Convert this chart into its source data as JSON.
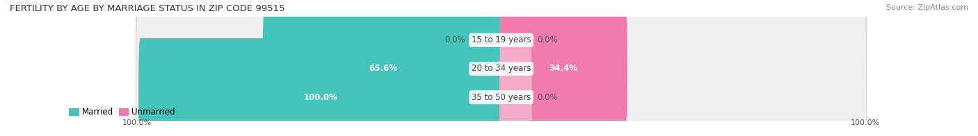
{
  "title": "FERTILITY BY AGE BY MARRIAGE STATUS IN ZIP CODE 99515",
  "source": "Source: ZipAtlas.com",
  "categories": [
    "15 to 19 years",
    "20 to 34 years",
    "35 to 50 years"
  ],
  "married_values": [
    0.0,
    65.6,
    100.0
  ],
  "unmarried_values": [
    0.0,
    34.4,
    0.0
  ],
  "married_color": "#45C4BC",
  "unmarried_color": "#F07AAE",
  "unmarried_light_color": "#F5AAC8",
  "married_label": "Married",
  "unmarried_label": "Unmarried",
  "title_fontsize": 9.5,
  "source_fontsize": 8,
  "bar_fontsize": 8.5,
  "legend_fontsize": 8.5,
  "tick_fontsize": 8,
  "axis_label_left": "100.0%",
  "axis_label_right": "100.0%",
  "background_color": "#FFFFFF",
  "row_bg_color": "#EFEFEF",
  "row_border_color": "#DDDDDD"
}
